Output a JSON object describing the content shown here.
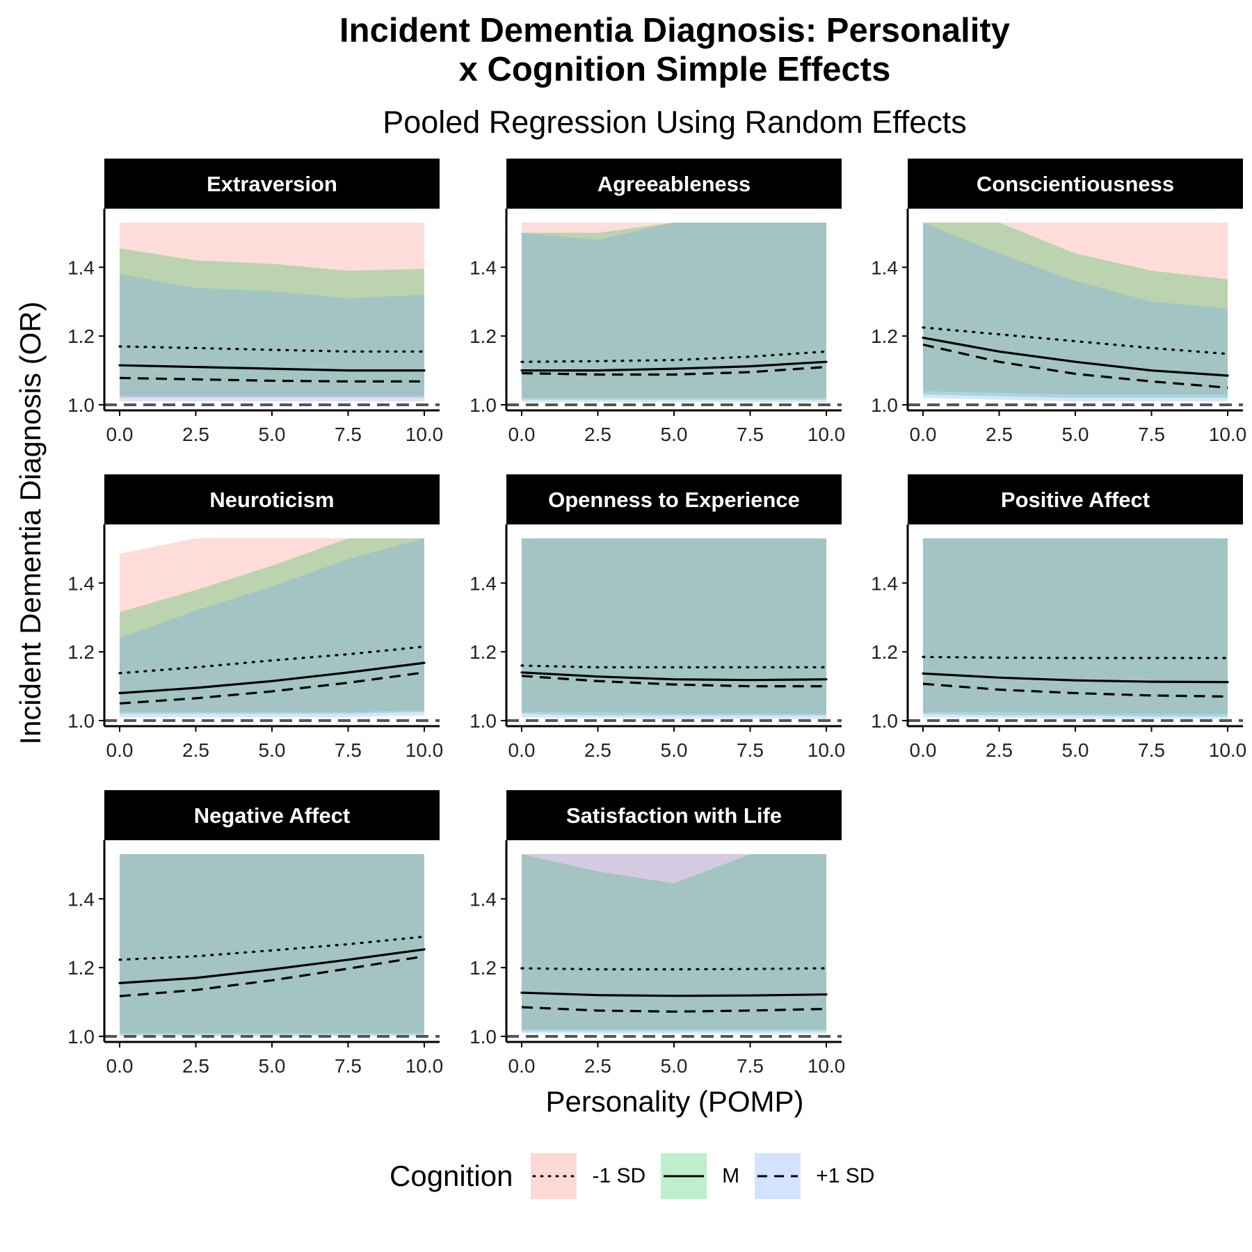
{
  "title_line1": "Incident Dementia Diagnosis: Personality",
  "title_line2": "x Cognition Simple Effects",
  "subtitle": "Pooled Regression Using Random Effects",
  "ylabel": "Incident Dementia Diagnosis (OR)",
  "xlabel": "Personality (POMP)",
  "legend": {
    "title": "Cognition",
    "items": [
      {
        "label": "-1 SD",
        "line": "dotted",
        "fill": "#f8766d"
      },
      {
        "label": "M",
        "line": "solid",
        "fill": "#00ba38"
      },
      {
        "label": "+1 SD",
        "line": "dashed",
        "fill": "#619cff"
      }
    ]
  },
  "chart_data": {
    "type": "line",
    "facet_by": "Personality trait",
    "x": [
      0,
      2.5,
      5,
      7.5,
      10
    ],
    "xlim": [
      0,
      10
    ],
    "ylim": [
      1.0,
      1.53
    ],
    "x_ticks": [
      "0.0",
      "2.5",
      "5.0",
      "7.5",
      "10.0"
    ],
    "y_ticks": [
      "1.0",
      "1.2",
      "1.4"
    ],
    "reference_line": 1.0,
    "colors": {
      "-1 SD": "#f8766d",
      "M": "#00ba38",
      "+1 SD": "#619cff",
      "overlap": "#a7c6c5"
    },
    "panels": [
      {
        "name": "Extraversion",
        "series": [
          {
            "name": "-1 SD",
            "values": [
              1.17,
              1.165,
              1.16,
              1.155,
              1.155
            ],
            "upper": [
              1.53,
              1.53,
              1.53,
              1.53,
              1.53
            ],
            "lower": [
              1.02,
              1.02,
              1.02,
              1.02,
              1.02
            ]
          },
          {
            "name": "M",
            "values": [
              1.115,
              1.11,
              1.105,
              1.1,
              1.1
            ],
            "upper": [
              1.455,
              1.42,
              1.41,
              1.39,
              1.395
            ],
            "lower": [
              1.025,
              1.025,
              1.025,
              1.025,
              1.025
            ]
          },
          {
            "name": "+1 SD",
            "values": [
              1.078,
              1.074,
              1.07,
              1.068,
              1.068
            ],
            "upper": [
              1.38,
              1.34,
              1.33,
              1.31,
              1.32
            ],
            "lower": [
              1.01,
              1.01,
              1.01,
              1.01,
              1.01
            ]
          }
        ]
      },
      {
        "name": "Agreeableness",
        "series": [
          {
            "name": "-1 SD",
            "values": [
              1.125,
              1.127,
              1.13,
              1.14,
              1.155
            ],
            "upper": [
              1.53,
              1.53,
              1.53,
              1.53,
              1.53
            ],
            "lower": [
              1.02,
              1.02,
              1.02,
              1.02,
              1.02
            ]
          },
          {
            "name": "M",
            "values": [
              1.1,
              1.1,
              1.105,
              1.112,
              1.125
            ],
            "upper": [
              1.5,
              1.5,
              1.53,
              1.53,
              1.53
            ],
            "lower": [
              1.015,
              1.015,
              1.015,
              1.015,
              1.015
            ]
          },
          {
            "name": "+1 SD",
            "values": [
              1.092,
              1.088,
              1.088,
              1.095,
              1.11
            ],
            "upper": [
              1.5,
              1.48,
              1.53,
              1.53,
              1.53
            ],
            "lower": [
              1.008,
              1.008,
              1.008,
              1.008,
              1.008
            ]
          }
        ]
      },
      {
        "name": "Conscientiousness",
        "series": [
          {
            "name": "-1 SD",
            "values": [
              1.225,
              1.205,
              1.185,
              1.165,
              1.148
            ],
            "upper": [
              1.53,
              1.53,
              1.53,
              1.53,
              1.53
            ],
            "lower": [
              1.04,
              1.035,
              1.03,
              1.03,
              1.03
            ]
          },
          {
            "name": "M",
            "values": [
              1.195,
              1.155,
              1.125,
              1.1,
              1.085
            ],
            "upper": [
              1.53,
              1.53,
              1.44,
              1.39,
              1.365
            ],
            "lower": [
              1.03,
              1.025,
              1.02,
              1.02,
              1.02
            ]
          },
          {
            "name": "+1 SD",
            "values": [
              1.175,
              1.125,
              1.09,
              1.068,
              1.05
            ],
            "upper": [
              1.53,
              1.44,
              1.36,
              1.3,
              1.28
            ],
            "lower": [
              1.02,
              1.015,
              1.01,
              1.01,
              1.01
            ]
          }
        ]
      },
      {
        "name": "Neuroticism",
        "series": [
          {
            "name": "-1 SD",
            "values": [
              1.138,
              1.155,
              1.175,
              1.193,
              1.215
            ],
            "upper": [
              1.485,
              1.53,
              1.53,
              1.53,
              1.53
            ],
            "lower": [
              1.025,
              1.025,
              1.025,
              1.025,
              1.03
            ]
          },
          {
            "name": "M",
            "values": [
              1.08,
              1.095,
              1.115,
              1.14,
              1.168
            ],
            "upper": [
              1.315,
              1.38,
              1.45,
              1.53,
              1.53
            ],
            "lower": [
              1.02,
              1.02,
              1.02,
              1.02,
              1.025
            ]
          },
          {
            "name": "+1 SD",
            "values": [
              1.05,
              1.065,
              1.085,
              1.11,
              1.14
            ],
            "upper": [
              1.24,
              1.32,
              1.39,
              1.47,
              1.53
            ],
            "lower": [
              1.01,
              1.01,
              1.01,
              1.01,
              1.015
            ]
          }
        ]
      },
      {
        "name": "Openness to Experience",
        "series": [
          {
            "name": "-1 SD",
            "values": [
              1.16,
              1.155,
              1.155,
              1.155,
              1.155
            ],
            "upper": [
              1.53,
              1.53,
              1.53,
              1.53,
              1.53
            ],
            "lower": [
              1.025,
              1.025,
              1.02,
              1.02,
              1.02
            ]
          },
          {
            "name": "M",
            "values": [
              1.14,
              1.128,
              1.12,
              1.118,
              1.12
            ],
            "upper": [
              1.53,
              1.53,
              1.53,
              1.53,
              1.53
            ],
            "lower": [
              1.02,
              1.015,
              1.015,
              1.015,
              1.015
            ]
          },
          {
            "name": "+1 SD",
            "values": [
              1.13,
              1.115,
              1.105,
              1.1,
              1.1
            ],
            "upper": [
              1.53,
              1.53,
              1.53,
              1.53,
              1.53
            ],
            "lower": [
              1.01,
              1.008,
              1.005,
              1.005,
              1.005
            ]
          }
        ]
      },
      {
        "name": "Positive Affect",
        "series": [
          {
            "name": "-1 SD",
            "values": [
              1.185,
              1.183,
              1.182,
              1.182,
              1.182
            ],
            "upper": [
              1.53,
              1.53,
              1.53,
              1.53,
              1.53
            ],
            "lower": [
              1.025,
              1.025,
              1.02,
              1.02,
              1.02
            ]
          },
          {
            "name": "M",
            "values": [
              1.137,
              1.125,
              1.117,
              1.113,
              1.112
            ],
            "upper": [
              1.53,
              1.53,
              1.53,
              1.53,
              1.53
            ],
            "lower": [
              1.02,
              1.015,
              1.015,
              1.012,
              1.012
            ]
          },
          {
            "name": "+1 SD",
            "values": [
              1.107,
              1.09,
              1.08,
              1.073,
              1.07
            ],
            "upper": [
              1.53,
              1.53,
              1.53,
              1.53,
              1.53
            ],
            "lower": [
              1.01,
              1.008,
              1.005,
              1.005,
              1.005
            ]
          }
        ]
      },
      {
        "name": "Negative Affect",
        "series": [
          {
            "name": "-1 SD",
            "values": [
              1.223,
              1.233,
              1.25,
              1.268,
              1.29
            ],
            "upper": [
              1.53,
              1.53,
              1.53,
              1.53,
              1.53
            ],
            "lower": [
              1.01,
              1.01,
              1.01,
              1.01,
              1.01
            ]
          },
          {
            "name": "M",
            "values": [
              1.155,
              1.17,
              1.195,
              1.223,
              1.253
            ],
            "upper": [
              1.53,
              1.53,
              1.53,
              1.53,
              1.53
            ],
            "lower": [
              1.005,
              1.005,
              1.005,
              1.005,
              1.005
            ]
          },
          {
            "name": "+1 SD",
            "values": [
              1.117,
              1.135,
              1.163,
              1.197,
              1.233
            ],
            "upper": [
              1.53,
              1.53,
              1.53,
              1.53,
              1.53
            ],
            "lower": [
              1.0,
              1.0,
              1.0,
              1.0,
              1.0
            ]
          }
        ]
      },
      {
        "name": "Satisfaction with Life",
        "series": [
          {
            "name": "-1 SD",
            "values": [
              1.198,
              1.195,
              1.195,
              1.196,
              1.198
            ],
            "upper": [
              1.53,
              1.53,
              1.53,
              1.53,
              1.53
            ],
            "lower": [
              1.02,
              1.02,
              1.02,
              1.02,
              1.02
            ]
          },
          {
            "name": "M",
            "values": [
              1.127,
              1.12,
              1.118,
              1.119,
              1.122
            ],
            "upper": [
              1.53,
              1.48,
              1.445,
              1.53,
              1.53
            ],
            "lower": [
              1.015,
              1.015,
              1.015,
              1.015,
              1.015
            ]
          },
          {
            "name": "+1 SD",
            "values": [
              1.085,
              1.075,
              1.072,
              1.075,
              1.08
            ],
            "upper": [
              1.53,
              1.53,
              1.53,
              1.53,
              1.53
            ],
            "lower": [
              1.01,
              1.008,
              1.008,
              1.008,
              1.008
            ]
          }
        ]
      }
    ]
  }
}
